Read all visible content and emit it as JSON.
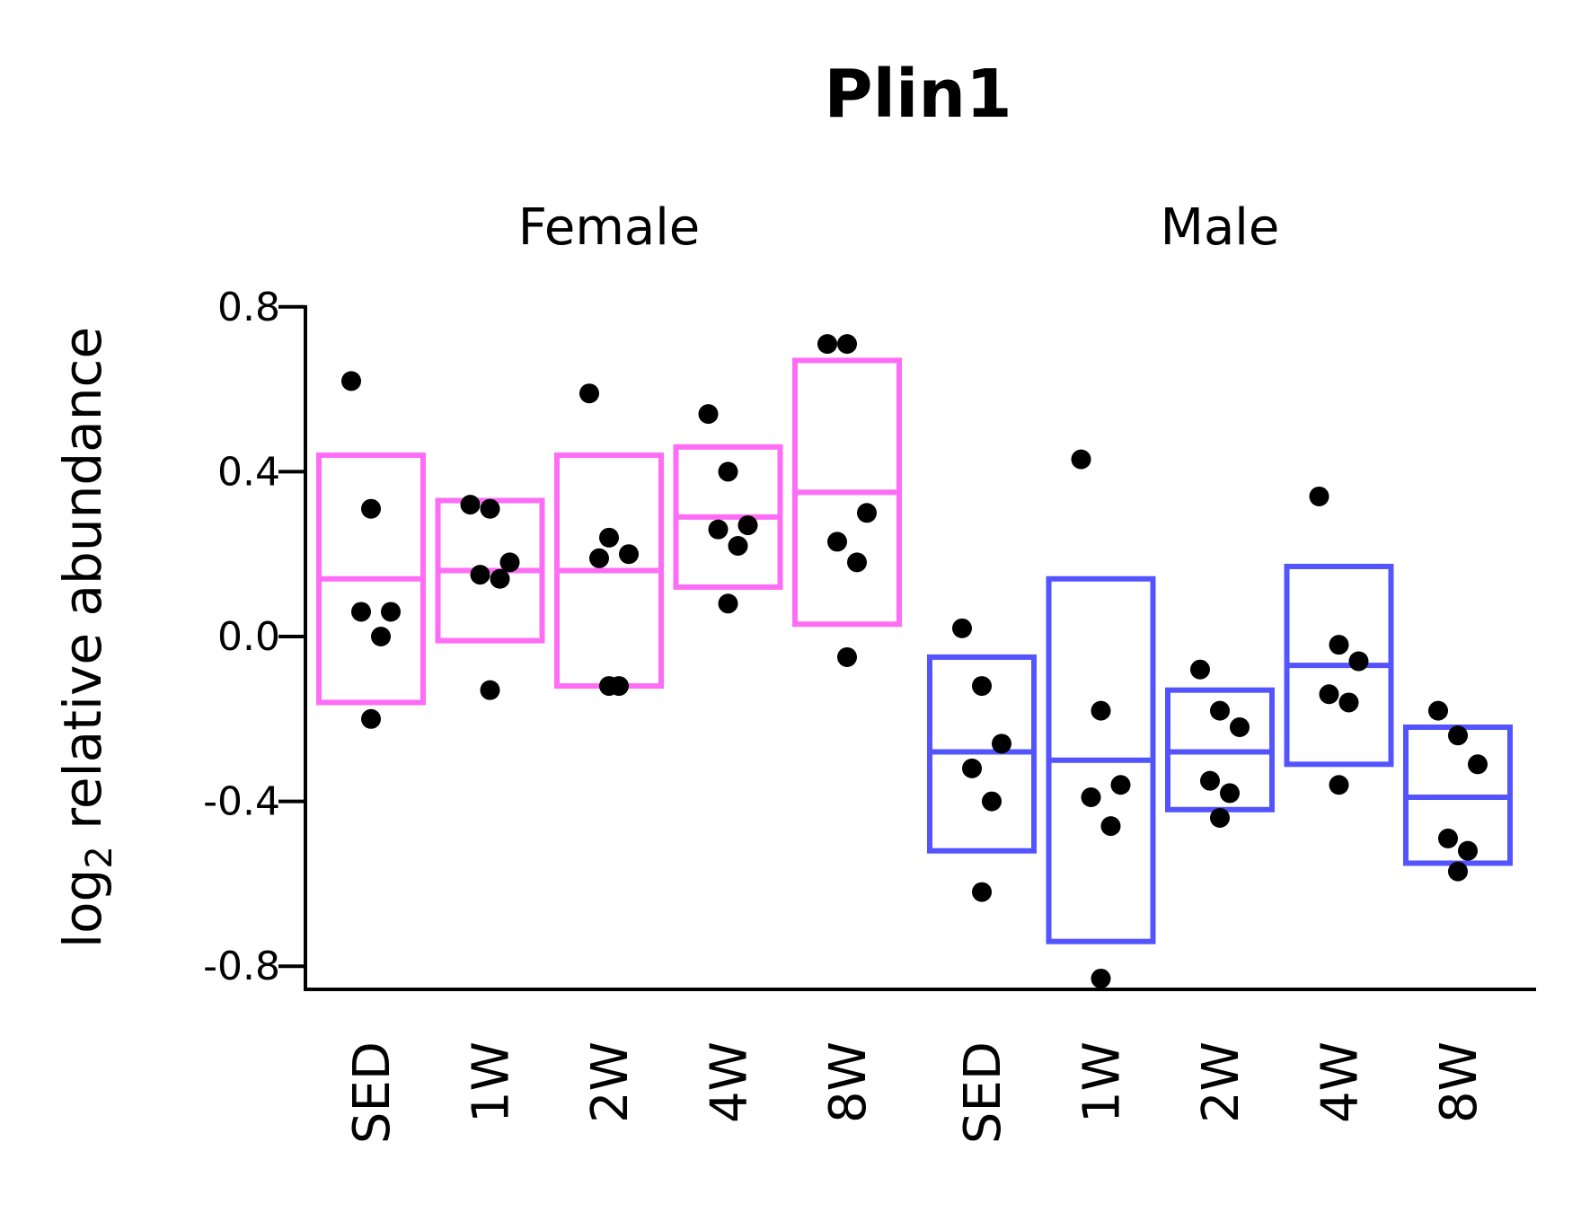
{
  "chart_data": {
    "type": "crossbar-dotplot",
    "title": "Plin1",
    "ylabel_main": "log",
    "ylabel_sub": "2",
    "ylabel_rest": " relative abundance",
    "ylim": [
      -0.85,
      0.8
    ],
    "yticks": [
      {
        "value": 0.8,
        "label": "0.8"
      },
      {
        "value": 0.4,
        "label": "0.4"
      },
      {
        "value": 0.0,
        "label": "0.0"
      },
      {
        "value": -0.4,
        "label": "-0.4"
      },
      {
        "value": -0.8,
        "label": "-0.8"
      }
    ],
    "grid": false,
    "legend": "none",
    "panels": [
      {
        "name": "Female",
        "color": "#FF6CF5",
        "groups": [
          {
            "label": "SED",
            "lower": -0.16,
            "mean": 0.14,
            "upper": 0.44,
            "points": [
              0.62,
              0.31,
              0.06,
              0.06,
              0.0,
              -0.2
            ]
          },
          {
            "label": "1W",
            "lower": -0.01,
            "mean": 0.16,
            "upper": 0.33,
            "points": [
              0.32,
              0.31,
              0.18,
              0.15,
              0.14,
              -0.13
            ]
          },
          {
            "label": "2W",
            "lower": -0.12,
            "mean": 0.16,
            "upper": 0.44,
            "points": [
              0.59,
              0.24,
              0.2,
              0.19,
              -0.12,
              -0.12
            ]
          },
          {
            "label": "4W",
            "lower": 0.12,
            "mean": 0.29,
            "upper": 0.46,
            "points": [
              0.54,
              0.4,
              0.27,
              0.26,
              0.22,
              0.08
            ]
          },
          {
            "label": "8W",
            "lower": 0.03,
            "mean": 0.35,
            "upper": 0.67,
            "points": [
              0.71,
              0.71,
              0.3,
              0.23,
              0.18,
              -0.05
            ]
          }
        ]
      },
      {
        "name": "Male",
        "color": "#5454FF",
        "groups": [
          {
            "label": "SED",
            "lower": -0.52,
            "mean": -0.28,
            "upper": -0.05,
            "points": [
              0.02,
              -0.12,
              -0.26,
              -0.32,
              -0.4,
              -0.62
            ]
          },
          {
            "label": "1W",
            "lower": -0.74,
            "mean": -0.3,
            "upper": 0.14,
            "points": [
              0.43,
              -0.18,
              -0.36,
              -0.39,
              -0.46,
              -0.83
            ]
          },
          {
            "label": "2W",
            "lower": -0.42,
            "mean": -0.28,
            "upper": -0.13,
            "points": [
              -0.08,
              -0.18,
              -0.22,
              -0.35,
              -0.38,
              -0.44
            ]
          },
          {
            "label": "4W",
            "lower": -0.31,
            "mean": -0.07,
            "upper": 0.17,
            "points": [
              0.34,
              -0.02,
              -0.06,
              -0.14,
              -0.16,
              -0.36
            ]
          },
          {
            "label": "8W",
            "lower": -0.55,
            "mean": -0.39,
            "upper": -0.22,
            "points": [
              -0.18,
              -0.24,
              -0.31,
              -0.49,
              -0.52,
              -0.57
            ]
          }
        ]
      }
    ]
  }
}
